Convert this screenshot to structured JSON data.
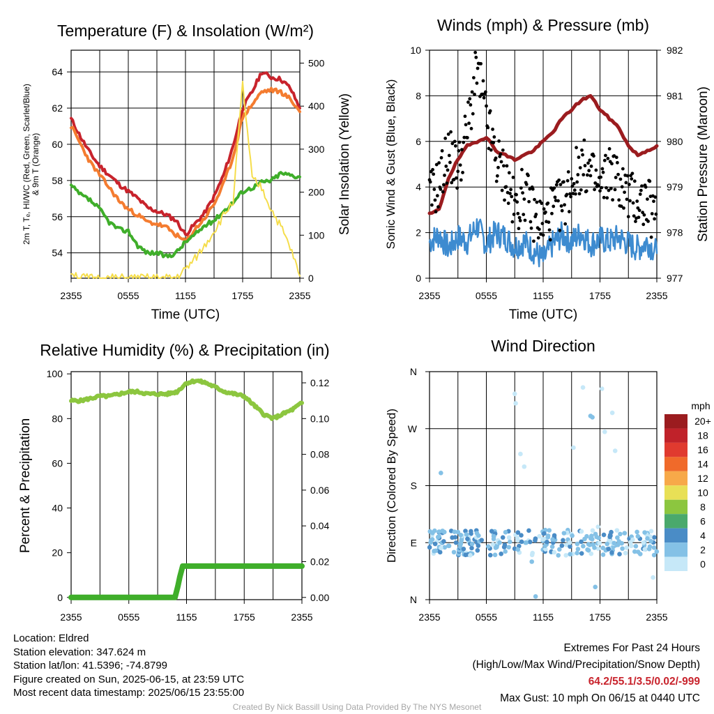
{
  "chart_data": [
    {
      "type": "line",
      "title": "Temperature (F) & Insolation (W/m²)",
      "xlabel": "Time (UTC)",
      "ylabel": "2m T, Tₑ, HI/WC (Red, Green, Scarlet/Blue) & 9m T (Orange)",
      "y2label": "Solar Insolation (Yellow)",
      "x_ticks": [
        "2355",
        "0555",
        "1155",
        "1755",
        "2355"
      ],
      "ylim": [
        52.6,
        65.2
      ],
      "y_ticks": [
        54,
        56,
        58,
        60,
        62,
        64
      ],
      "y2lim": [
        0,
        530
      ],
      "y2_ticks": [
        0,
        100,
        200,
        300,
        400,
        500
      ],
      "x_hours": [
        0,
        1,
        2,
        3,
        4,
        5,
        6,
        7,
        8,
        9,
        10,
        11,
        12,
        13,
        14,
        15,
        16,
        17,
        18,
        19,
        20,
        21,
        22,
        23,
        24
      ],
      "grid": true,
      "series": [
        {
          "color": "#c8232c",
          "axis": "left",
          "values": [
            61.4,
            60.4,
            59.5,
            58.8,
            58.3,
            57.8,
            57.4,
            57.0,
            56.5,
            56.3,
            56.1,
            55.8,
            55.0,
            55.6,
            56.2,
            57.1,
            58.3,
            59.9,
            62.0,
            62.9,
            64.0,
            63.7,
            63.6,
            63.1,
            62.0
          ]
        },
        {
          "color": "#f47c30",
          "axis": "left",
          "values": [
            61.0,
            60.0,
            59.0,
            58.3,
            57.6,
            56.9,
            56.4,
            56.1,
            55.7,
            55.6,
            55.4,
            55.0,
            54.6,
            55.3,
            55.9,
            56.7,
            57.8,
            59.3,
            61.5,
            62.2,
            62.9,
            63.0,
            62.9,
            62.5,
            61.8
          ]
        },
        {
          "color": "#3fae2a",
          "axis": "left",
          "values": [
            57.7,
            57.2,
            56.9,
            56.4,
            55.7,
            55.3,
            55.2,
            54.4,
            54.0,
            54.0,
            53.8,
            54.0,
            54.6,
            55.0,
            55.5,
            55.8,
            56.3,
            56.8,
            57.4,
            57.6,
            57.9,
            58.0,
            58.4,
            58.3,
            58.2
          ]
        },
        {
          "color": "#f5dd4b",
          "axis": "right",
          "values": [
            15,
            2,
            0,
            0,
            0,
            0,
            0,
            0,
            0,
            0,
            0,
            2,
            20,
            45,
            75,
            110,
            145,
            180,
            450,
            230,
            210,
            160,
            120,
            70,
            5
          ]
        }
      ]
    },
    {
      "type": "line",
      "title": "Winds (mph) & Pressure (mb)",
      "xlabel": "Time (UTC)",
      "ylabel": "Sonic Wind & Gust (Blue, Black)",
      "y2label": "Station Pressure (Maroon)",
      "x_ticks": [
        "2355",
        "0555",
        "1155",
        "1755",
        "2355"
      ],
      "ylim": [
        0,
        10
      ],
      "y_ticks": [
        0,
        2,
        4,
        6,
        8,
        10
      ],
      "y2lim": [
        977,
        982
      ],
      "y2_ticks": [
        977,
        978,
        979,
        980,
        981,
        982
      ],
      "x_hours": [
        0,
        1,
        2,
        3,
        4,
        5,
        6,
        7,
        8,
        9,
        10,
        11,
        12,
        13,
        14,
        15,
        16,
        17,
        18,
        19,
        20,
        21,
        22,
        23,
        24
      ],
      "grid": true,
      "series": [
        {
          "color": "#9b1c1f",
          "axis": "right",
          "values": [
            978.4,
            978.5,
            979.2,
            979.6,
            979.9,
            980.0,
            980.1,
            979.8,
            979.7,
            979.6,
            979.7,
            979.8,
            980.0,
            980.2,
            980.5,
            980.7,
            980.9,
            981.0,
            980.7,
            980.5,
            980.3,
            979.9,
            979.7,
            979.8,
            979.9
          ]
        },
        {
          "color": "#3d8bd0",
          "axis": "left",
          "values": [
            1.6,
            1.9,
            1.3,
            1.8,
            1.6,
            2.3,
            1.5,
            2.0,
            1.8,
            1.4,
            1.6,
            1.2,
            0.8,
            1.5,
            1.9,
            1.6,
            2.0,
            1.5,
            1.7,
            1.6,
            1.8,
            1.5,
            1.3,
            1.6,
            1.1
          ]
        },
        {
          "color": "#000000",
          "axis": "left",
          "type": "scatter",
          "values": [
            3.5,
            4.2,
            5.5,
            4.8,
            6.5,
            9.2,
            7.0,
            5.2,
            4.5,
            3.0,
            3.8,
            2.8,
            2.4,
            3.0,
            3.2,
            4.2,
            5.0,
            4.6,
            3.8,
            4.8,
            4.2,
            3.6,
            3.4,
            3.3,
            2.4
          ]
        }
      ]
    },
    {
      "type": "line",
      "title": "Relative Humidity (%) & Precipitation (in)",
      "xlabel": "",
      "ylabel": "Percent & Precipitation",
      "x_ticks": [
        "2355",
        "0555",
        "1155",
        "1755",
        "2355"
      ],
      "ylim": [
        -1,
        101
      ],
      "y_ticks": [
        0,
        20,
        40,
        60,
        80,
        100
      ],
      "y2lim": [
        -0.00125,
        0.12625
      ],
      "y2_ticks": [
        "0.00",
        "0.02",
        "0.04",
        "0.06",
        "0.08",
        "0.10",
        "0.12"
      ],
      "x_hours": [
        0,
        1,
        2,
        3,
        4,
        5,
        6,
        7,
        8,
        9,
        10,
        11,
        12,
        13,
        14,
        15,
        16,
        17,
        18,
        19,
        20,
        21,
        22,
        23,
        24
      ],
      "grid": true,
      "series": [
        {
          "color": "#8cc63f",
          "axis": "left",
          "values": [
            88,
            88,
            89,
            90,
            90,
            91,
            92,
            92,
            91,
            91,
            91,
            92,
            96,
            97,
            96,
            94,
            92,
            91,
            90,
            86,
            82,
            80,
            82,
            84,
            87
          ]
        },
        {
          "color": "#3fae2a",
          "axis": "left",
          "values": [
            0,
            0,
            0,
            0,
            0,
            0,
            0,
            0,
            0,
            0,
            0,
            0,
            14,
            14,
            14,
            14,
            14,
            14,
            14,
            14,
            14,
            14,
            14,
            14,
            14
          ]
        }
      ]
    },
    {
      "type": "scatter",
      "title": "Wind Direction",
      "xlabel": "",
      "ylabel": "Direction (Colored By Speed)",
      "x_ticks": [
        "2355",
        "0555",
        "1155",
        "1755",
        "2355"
      ],
      "y_ticks": [
        "N",
        "E",
        "S",
        "W",
        "N"
      ],
      "ylim": [
        0,
        360
      ],
      "grid": true,
      "colorbar_unit": "mph",
      "colorbar": [
        {
          "label": "0",
          "color": "#c6e8f8"
        },
        {
          "label": "2",
          "color": "#84c1e6"
        },
        {
          "label": "4",
          "color": "#4a8cc6"
        },
        {
          "label": "6",
          "color": "#4aa96c"
        },
        {
          "label": "8",
          "color": "#8cc63f"
        },
        {
          "label": "10",
          "color": "#e8e056"
        },
        {
          "label": "12",
          "color": "#f7a949"
        },
        {
          "label": "14",
          "color": "#f06a2a"
        },
        {
          "label": "16",
          "color": "#e03a2f"
        },
        {
          "label": "18",
          "color": "#c0222a"
        },
        {
          "label": "20+",
          "color": "#9b1c1f"
        }
      ],
      "points": [
        {
          "x": 0.3,
          "y": 95,
          "v": 2.0
        },
        {
          "x": 0.6,
          "y": 88,
          "v": 4.0
        },
        {
          "x": 1.0,
          "y": 100,
          "v": 2.5
        },
        {
          "x": 1.2,
          "y": 200,
          "v": 1.0
        },
        {
          "x": 1.5,
          "y": 92,
          "v": 3.5
        },
        {
          "x": 2.0,
          "y": 85,
          "v": 2.0
        },
        {
          "x": 2.4,
          "y": 98,
          "v": 4.5
        },
        {
          "x": 2.8,
          "y": 90,
          "v": 3.0
        },
        {
          "x": 3.3,
          "y": 102,
          "v": 2.0
        },
        {
          "x": 3.6,
          "y": 80,
          "v": 4.0
        },
        {
          "x": 4.0,
          "y": 96,
          "v": 3.0
        },
        {
          "x": 4.5,
          "y": 88,
          "v": 1.5
        },
        {
          "x": 5.0,
          "y": 105,
          "v": 2.5
        },
        {
          "x": 5.5,
          "y": 94,
          "v": 3.5
        },
        {
          "x": 6.2,
          "y": 84,
          "v": 2.0
        },
        {
          "x": 6.8,
          "y": 100,
          "v": 1.0
        },
        {
          "x": 7.4,
          "y": 90,
          "v": 2.0
        },
        {
          "x": 8.0,
          "y": 76,
          "v": 1.5
        },
        {
          "x": 8.4,
          "y": 98,
          "v": 0.5
        },
        {
          "x": 9.0,
          "y": 325,
          "v": 0.5
        },
        {
          "x": 9.1,
          "y": 310,
          "v": 0.5
        },
        {
          "x": 9.6,
          "y": 230,
          "v": 0.5
        },
        {
          "x": 10.0,
          "y": 210,
          "v": 0.5
        },
        {
          "x": 10.2,
          "y": 90,
          "v": 1.0
        },
        {
          "x": 10.8,
          "y": 60,
          "v": 1.0
        },
        {
          "x": 11.2,
          "y": 5,
          "v": 1.5
        },
        {
          "x": 11.6,
          "y": 100,
          "v": 0.5
        },
        {
          "x": 12.2,
          "y": 85,
          "v": 1.5
        },
        {
          "x": 13.0,
          "y": 95,
          "v": 1.0
        },
        {
          "x": 13.6,
          "y": 70,
          "v": 1.0
        },
        {
          "x": 14.2,
          "y": 105,
          "v": 2.5
        },
        {
          "x": 14.8,
          "y": 90,
          "v": 0.5
        },
        {
          "x": 15.2,
          "y": 240,
          "v": 0.5
        },
        {
          "x": 15.6,
          "y": 88,
          "v": 2.0
        },
        {
          "x": 16.2,
          "y": 335,
          "v": 0.5
        },
        {
          "x": 16.6,
          "y": 100,
          "v": 1.0
        },
        {
          "x": 17.0,
          "y": 290,
          "v": 2.0
        },
        {
          "x": 17.2,
          "y": 288,
          "v": 2.5
        },
        {
          "x": 17.5,
          "y": 20,
          "v": 1.0
        },
        {
          "x": 17.8,
          "y": 115,
          "v": 0.5
        },
        {
          "x": 18.2,
          "y": 333,
          "v": 0.5
        },
        {
          "x": 18.5,
          "y": 265,
          "v": 0.5
        },
        {
          "x": 18.9,
          "y": 80,
          "v": 3.0
        },
        {
          "x": 19.3,
          "y": 295,
          "v": 0.5
        },
        {
          "x": 19.6,
          "y": 235,
          "v": 0.5
        },
        {
          "x": 20.0,
          "y": 92,
          "v": 2.5
        },
        {
          "x": 20.6,
          "y": 105,
          "v": 1.0
        },
        {
          "x": 21.3,
          "y": 85,
          "v": 0.5
        },
        {
          "x": 22.0,
          "y": 100,
          "v": 1.0
        },
        {
          "x": 22.6,
          "y": 90,
          "v": 0.5
        },
        {
          "x": 23.2,
          "y": 80,
          "v": 1.0
        },
        {
          "x": 23.6,
          "y": 35,
          "v": 0.5
        }
      ]
    }
  ],
  "info": {
    "location": "Location: Eldred",
    "elevation": "Station elevation: 347.624 m",
    "latlon": "Station lat/lon: 41.5396; -74.8799",
    "created": "Figure created on Sun, 2025-06-15, at 23:59 UTC",
    "recent": "Most recent data timestamp: 2025/06/15 23:55:00"
  },
  "extremes": {
    "heading": "Extremes For Past 24 Hours",
    "subheading": "(High/Low/Max Wind/Precipitation/Snow Depth)",
    "values": "64.2/55.1/3.5/0.02/-999",
    "gust": "Max Gust: 10 mph On 06/15 at 0440 UTC"
  },
  "credit": "Created By Nick Bassill Using Data Provided By The NYS Mesonet"
}
